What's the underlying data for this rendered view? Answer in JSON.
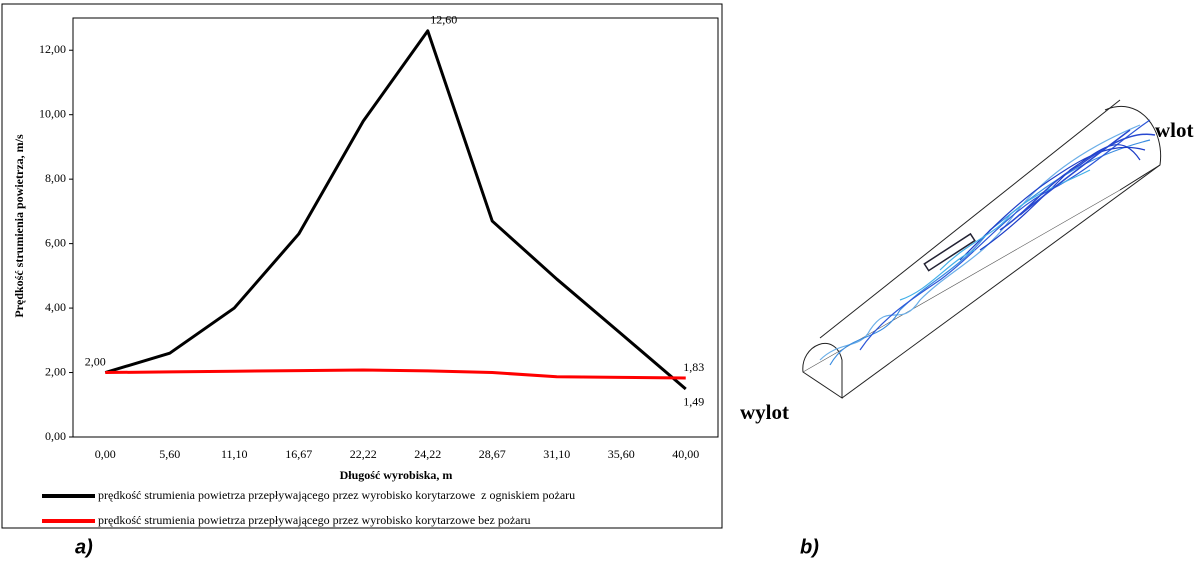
{
  "chart_data": {
    "type": "line",
    "x_label": "Długość wyrobiska, m",
    "y_label": "Prędkość strumienia powietrza, m/s",
    "categories": [
      "0,00",
      "5,60",
      "11,10",
      "16,67",
      "22,22",
      "24,22",
      "28,67",
      "31,10",
      "35,60",
      "40,00"
    ],
    "series": [
      {
        "name": "prędkość strumienia powietrza przepływającego przez wyrobisko korytarzowe  z ogniskiem pożaru",
        "color": "#000000",
        "values": [
          2.0,
          2.6,
          4.0,
          6.3,
          9.8,
          12.6,
          6.7,
          4.9,
          3.2,
          1.49
        ],
        "value_labels": [
          "2,00",
          null,
          null,
          null,
          null,
          "12,60",
          null,
          null,
          null,
          "1,49"
        ]
      },
      {
        "name": "prędkość strumienia powietrza przepływającego przez wyrobisko korytarzowe bez pożaru",
        "color": "#ff0000",
        "values": [
          2.0,
          2.02,
          2.04,
          2.06,
          2.08,
          2.05,
          2.0,
          1.87,
          1.85,
          1.83
        ],
        "value_labels": [
          null,
          null,
          null,
          null,
          null,
          null,
          null,
          null,
          null,
          "1,83"
        ]
      }
    ],
    "ylim": [
      0,
      13
    ],
    "yticks": [
      {
        "value": 0,
        "label": "0,00"
      },
      {
        "value": 2,
        "label": "2,00"
      },
      {
        "value": 4,
        "label": "4,00"
      },
      {
        "value": 6,
        "label": "6,00"
      },
      {
        "value": 8,
        "label": "8,00"
      },
      {
        "value": 10,
        "label": "10,00"
      },
      {
        "value": 12,
        "label": "12,00"
      }
    ],
    "grid": false
  },
  "labels": {
    "panel_a": "a)",
    "panel_b": "b)",
    "inlet": "wlot",
    "outlet": "wylot"
  }
}
